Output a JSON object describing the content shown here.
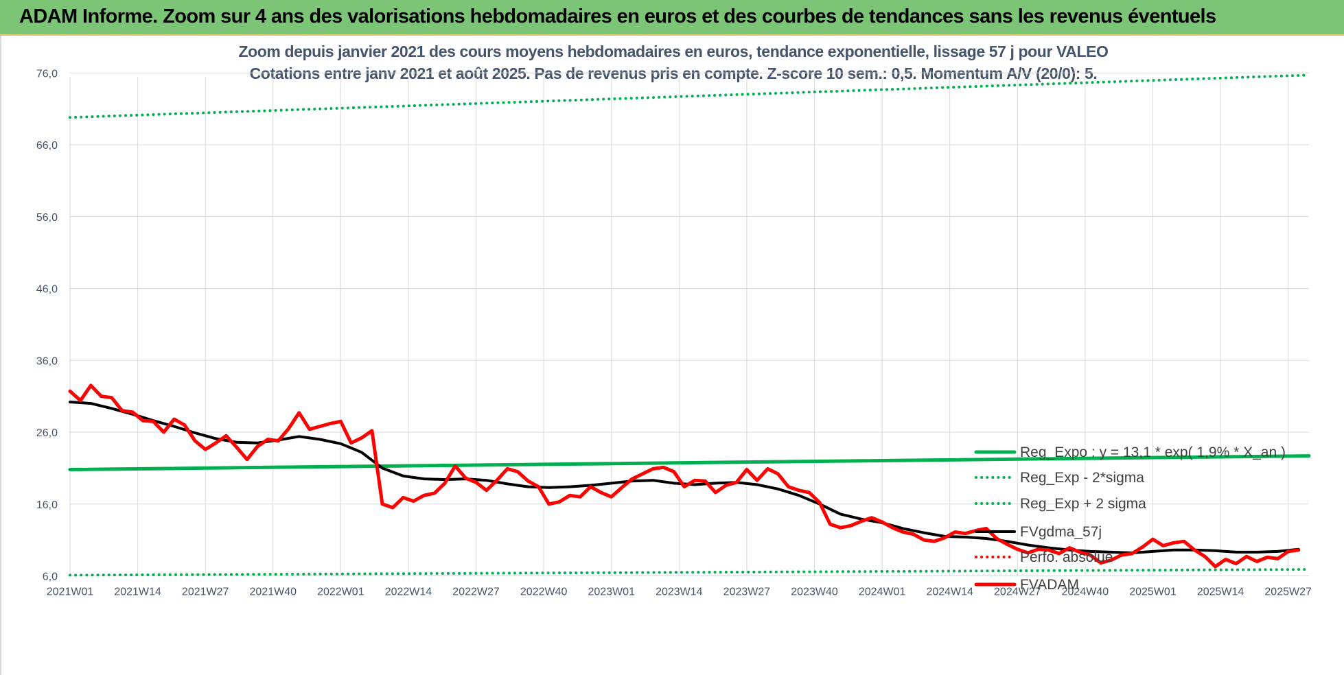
{
  "banner": {
    "title": "ADAM Informe. Zoom sur 4 ans des valorisations hebdomadaires en euros et des courbes de tendances sans les revenus éventuels"
  },
  "chart_data": {
    "type": "line",
    "title_line1": "Zoom depuis janvier 2021 des cours moyens hebdomadaires en euros, tendance exponentielle, lissage 57 j pour VALEO",
    "title_line2": "Cotations entre janv 2021 et août 2025.  Pas de revenus pris en compte. Z-score 10 sem.: 0,5. Momentum A/V (20/0): 5.",
    "ylim": [
      6,
      80
    ],
    "y_ticks": [
      "76,0",
      "66,0",
      "56,0",
      "46,0",
      "36,0",
      "26,0",
      "16,0",
      "6,0"
    ],
    "y_tick_values": [
      76,
      66,
      56,
      46,
      36,
      26,
      16,
      6
    ],
    "x_tick_labels": [
      "2021W01",
      "2021W14",
      "2021W27",
      "2021W40",
      "2022W01",
      "2022W14",
      "2022W27",
      "2022W40",
      "2023W01",
      "2023W14",
      "2023W27",
      "2023W40",
      "2024W01",
      "2024W14",
      "2024W27",
      "2024W40",
      "2025W01",
      "2025W14",
      "2025W27"
    ],
    "x_tick_index": [
      0,
      13,
      26,
      39,
      52,
      65,
      78,
      91,
      104,
      117,
      130,
      143,
      156,
      169,
      182,
      195,
      208,
      221,
      234
    ],
    "n_weeks": 238,
    "grid": true,
    "legend_position": "right",
    "colors": {
      "reg_expo": "#00b050",
      "bands": "#00b050",
      "fvgdma": "#000000",
      "perfo": "#ff0000",
      "fvadam": "#ff0000",
      "grid": "#d9d9d9",
      "axis_text": "#44546a"
    },
    "series": [
      {
        "name": "Reg_Expo : y = 13,1 * exp( 1,9% *  X_an )",
        "style": "solid-thick",
        "color": "#00b050",
        "x": [
          0,
          238
        ],
        "y": [
          20.8,
          22.7
        ]
      },
      {
        "name": "Reg_Exp - 2*sigma",
        "style": "dotted",
        "color": "#00b050",
        "x": [
          0,
          238
        ],
        "y": [
          6.1,
          6.9
        ]
      },
      {
        "name": "Reg_Exp + 2 sigma",
        "style": "dotted",
        "color": "#00b050",
        "x": [
          0,
          238
        ],
        "y": [
          69.8,
          75.7
        ]
      },
      {
        "name": "FVgdma_57j",
        "style": "solid",
        "color": "#000000",
        "x": [
          0,
          4,
          8,
          12,
          16,
          20,
          24,
          28,
          32,
          36,
          40,
          44,
          48,
          52,
          56,
          60,
          64,
          68,
          72,
          76,
          80,
          84,
          88,
          92,
          96,
          100,
          104,
          108,
          112,
          116,
          120,
          124,
          128,
          132,
          136,
          140,
          144,
          148,
          152,
          156,
          160,
          164,
          168,
          172,
          176,
          180,
          184,
          188,
          192,
          196,
          200,
          204,
          208,
          212,
          216,
          220,
          224,
          228,
          232,
          236
        ],
        "y": [
          30.2,
          30.0,
          29.3,
          28.5,
          27.6,
          26.8,
          25.9,
          25.1,
          24.6,
          24.5,
          24.9,
          25.4,
          25.0,
          24.4,
          23.2,
          21.0,
          19.9,
          19.5,
          19.4,
          19.5,
          19.3,
          18.8,
          18.4,
          18.3,
          18.4,
          18.6,
          18.9,
          19.2,
          19.3,
          18.9,
          18.7,
          18.9,
          19.0,
          18.7,
          18.1,
          17.2,
          16.0,
          14.6,
          13.9,
          13.4,
          12.6,
          12.0,
          11.5,
          11.4,
          11.2,
          10.8,
          10.3,
          9.9,
          9.6,
          9.4,
          9.3,
          9.2,
          9.4,
          9.6,
          9.6,
          9.5,
          9.3,
          9.3,
          9.4,
          9.7
        ]
      },
      {
        "name": "Perfo. absolue",
        "style": "dotted",
        "color": "#ff0000",
        "x": [],
        "y": []
      },
      {
        "name": "FVADAM",
        "style": "solid-thick",
        "color": "#ff0000",
        "x": [
          0,
          2,
          4,
          6,
          8,
          10,
          12,
          14,
          16,
          18,
          20,
          22,
          24,
          26,
          28,
          30,
          32,
          34,
          36,
          38,
          40,
          42,
          44,
          46,
          48,
          50,
          52,
          54,
          56,
          58,
          60,
          62,
          64,
          66,
          68,
          70,
          72,
          74,
          76,
          78,
          80,
          82,
          84,
          86,
          88,
          90,
          92,
          94,
          96,
          98,
          100,
          102,
          104,
          106,
          108,
          110,
          112,
          114,
          116,
          118,
          120,
          122,
          124,
          126,
          128,
          130,
          132,
          134,
          136,
          138,
          140,
          142,
          144,
          146,
          148,
          150,
          152,
          154,
          156,
          158,
          160,
          162,
          164,
          166,
          168,
          170,
          172,
          174,
          176,
          178,
          180,
          182,
          184,
          186,
          188,
          190,
          192,
          194,
          196,
          198,
          200,
          202,
          204,
          206,
          208,
          210,
          212,
          214,
          216,
          218,
          220,
          222,
          224,
          226,
          228,
          230,
          232,
          234,
          236
        ],
        "y": [
          31.7,
          30.4,
          32.5,
          31.0,
          30.8,
          29.0,
          28.8,
          27.6,
          27.5,
          26.0,
          27.8,
          27.0,
          24.8,
          23.6,
          24.5,
          25.5,
          23.9,
          22.2,
          24.0,
          25.0,
          24.8,
          26.5,
          28.7,
          26.4,
          26.8,
          27.2,
          27.5,
          24.5,
          25.2,
          26.2,
          16.0,
          15.5,
          16.9,
          16.4,
          17.2,
          17.5,
          18.9,
          21.3,
          19.6,
          19.0,
          17.9,
          19.3,
          20.9,
          20.5,
          19.2,
          18.4,
          16.0,
          16.3,
          17.2,
          17.0,
          18.4,
          17.6,
          17.0,
          18.3,
          19.5,
          20.2,
          20.9,
          21.1,
          20.5,
          18.4,
          19.3,
          19.2,
          17.6,
          18.6,
          19.0,
          20.8,
          19.3,
          20.9,
          20.2,
          18.4,
          17.9,
          17.6,
          16.2,
          13.2,
          12.7,
          13.0,
          13.6,
          14.1,
          13.5,
          12.7,
          12.1,
          11.8,
          11.0,
          10.8,
          11.3,
          12.1,
          11.9,
          12.3,
          12.6,
          11.2,
          10.4,
          9.7,
          9.2,
          9.7,
          9.6,
          9.1,
          9.9,
          9.3,
          8.9,
          7.8,
          8.2,
          8.9,
          9.1,
          10.0,
          11.1,
          10.2,
          10.6,
          10.8,
          9.6,
          8.7,
          7.3,
          8.3,
          7.7,
          8.7,
          8.0,
          8.6,
          8.4,
          9.4,
          9.6
        ]
      }
    ]
  }
}
